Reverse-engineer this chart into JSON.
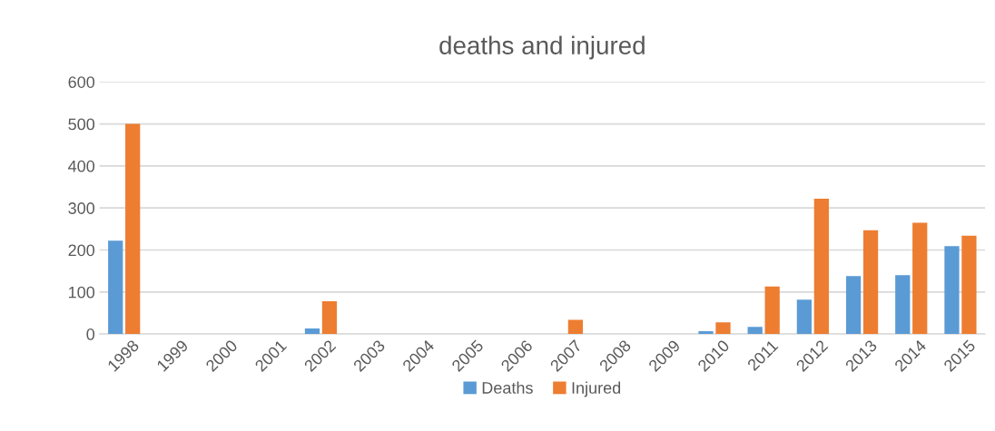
{
  "chart_data": {
    "type": "bar",
    "title": "deaths and injured",
    "categories": [
      "1998",
      "1999",
      "2000",
      "2001",
      "2002",
      "2003",
      "2004",
      "2005",
      "2006",
      "2007",
      "2008",
      "2009",
      "2010",
      "2011",
      "2012",
      "2013",
      "2014",
      "2015"
    ],
    "series": [
      {
        "name": "Deaths",
        "color": "#5b9bd5",
        "values": [
          222,
          0,
          0,
          0,
          13,
          0,
          0,
          0,
          0,
          0,
          0,
          0,
          7,
          17,
          82,
          138,
          140,
          209
        ]
      },
      {
        "name": "Injured",
        "color": "#ed7d31",
        "values": [
          500,
          0,
          0,
          0,
          78,
          0,
          0,
          0,
          0,
          34,
          0,
          0,
          28,
          113,
          322,
          247,
          265,
          234
        ]
      }
    ],
    "ylim": [
      0,
      600
    ],
    "yticks": [
      0,
      100,
      200,
      300,
      400,
      500,
      600
    ],
    "grid": "y",
    "legend": "bottom"
  }
}
